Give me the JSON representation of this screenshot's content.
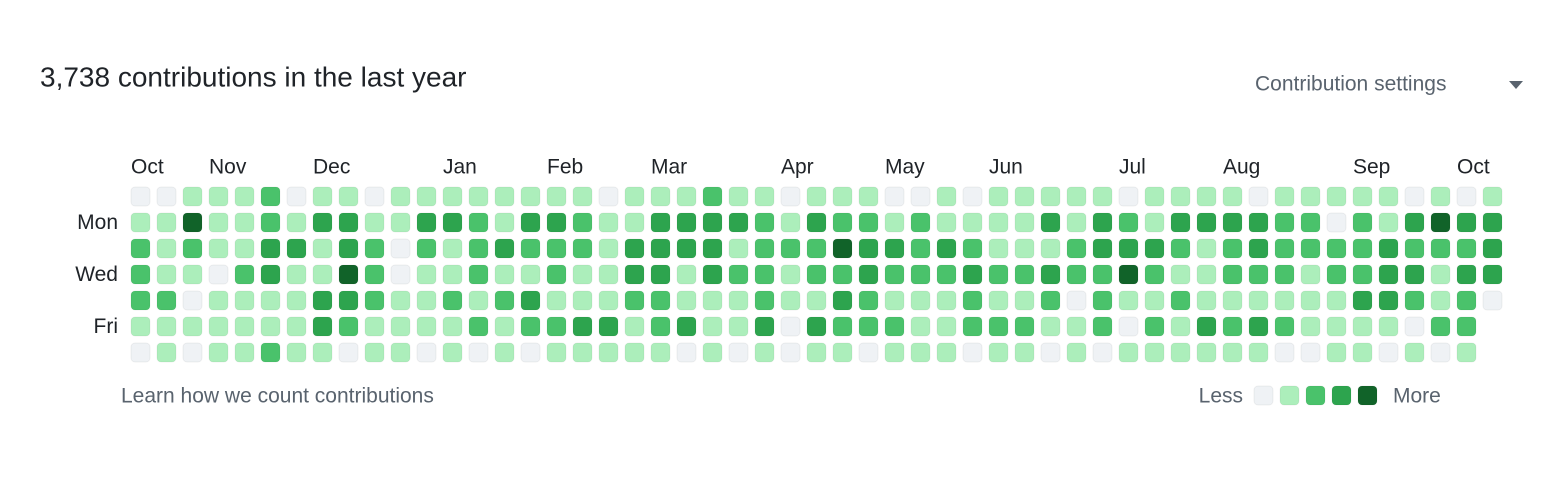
{
  "header": {
    "title": "3,738 contributions in the last year",
    "settings": "Contribution settings"
  },
  "graph": {
    "month_labels": [
      "Oct",
      null,
      null,
      "Nov",
      null,
      null,
      null,
      "Dec",
      null,
      null,
      null,
      null,
      "Jan",
      null,
      null,
      null,
      "Feb",
      null,
      null,
      null,
      "Mar",
      null,
      null,
      null,
      null,
      "Apr",
      null,
      null,
      null,
      "May",
      null,
      null,
      null,
      "Jun",
      null,
      null,
      null,
      null,
      "Jul",
      null,
      null,
      null,
      "Aug",
      null,
      null,
      null,
      null,
      "Sep",
      null,
      null,
      null,
      "Oct",
      null
    ],
    "day_labels": [
      null,
      "Mon",
      null,
      "Wed",
      null,
      "Fri",
      null
    ],
    "level_colors": [
      "#eff2f5",
      "#aceebb",
      "#4ac26b",
      "#2da44e",
      "#116329"
    ],
    "rows": [
      [
        0,
        0,
        1,
        1,
        1,
        2,
        0,
        1,
        1,
        0,
        1,
        1,
        1,
        1,
        1,
        1,
        1,
        1,
        0,
        1,
        1,
        1,
        2,
        1,
        1,
        0,
        1,
        1,
        1,
        0,
        0,
        1,
        0,
        1,
        1,
        1,
        1,
        1,
        0,
        1,
        1,
        1,
        1,
        0,
        1,
        1,
        1,
        1,
        1,
        0,
        1,
        0,
        1
      ],
      [
        1,
        1,
        4,
        1,
        1,
        2,
        1,
        3,
        3,
        1,
        1,
        3,
        3,
        2,
        1,
        3,
        3,
        2,
        1,
        1,
        3,
        3,
        3,
        3,
        2,
        1,
        3,
        2,
        2,
        1,
        2,
        1,
        1,
        1,
        1,
        3,
        1,
        3,
        2,
        1,
        3,
        3,
        3,
        3,
        2,
        2,
        0,
        2,
        1,
        3,
        4,
        3,
        3
      ],
      [
        2,
        1,
        2,
        1,
        1,
        3,
        3,
        1,
        3,
        2,
        0,
        2,
        1,
        2,
        3,
        2,
        2,
        2,
        1,
        3,
        3,
        3,
        3,
        1,
        2,
        2,
        2,
        4,
        3,
        3,
        2,
        3,
        2,
        1,
        1,
        1,
        2,
        3,
        3,
        3,
        2,
        1,
        2,
        3,
        2,
        2,
        2,
        2,
        3,
        2,
        2,
        2,
        3
      ],
      [
        2,
        1,
        1,
        0,
        2,
        3,
        1,
        1,
        4,
        2,
        0,
        1,
        1,
        2,
        1,
        1,
        2,
        1,
        1,
        3,
        3,
        1,
        3,
        2,
        2,
        1,
        2,
        2,
        3,
        2,
        2,
        2,
        3,
        2,
        2,
        3,
        2,
        2,
        4,
        2,
        1,
        1,
        2,
        2,
        2,
        1,
        2,
        2,
        3,
        3,
        1,
        3,
        3
      ],
      [
        2,
        2,
        0,
        1,
        1,
        1,
        1,
        3,
        3,
        2,
        1,
        1,
        2,
        1,
        2,
        3,
        1,
        1,
        1,
        2,
        2,
        1,
        1,
        1,
        2,
        1,
        1,
        3,
        2,
        1,
        1,
        1,
        2,
        1,
        1,
        2,
        0,
        2,
        1,
        1,
        2,
        1,
        1,
        1,
        1,
        1,
        1,
        3,
        3,
        2,
        1,
        2,
        0
      ],
      [
        1,
        1,
        1,
        1,
        1,
        1,
        1,
        3,
        2,
        1,
        1,
        1,
        1,
        2,
        1,
        2,
        2,
        3,
        3,
        1,
        2,
        3,
        1,
        1,
        3,
        0,
        3,
        2,
        2,
        2,
        1,
        1,
        2,
        2,
        2,
        1,
        1,
        2,
        0,
        2,
        1,
        3,
        2,
        3,
        2,
        1,
        1,
        1,
        1,
        0,
        2,
        2,
        null
      ],
      [
        0,
        1,
        0,
        1,
        1,
        2,
        1,
        1,
        0,
        1,
        1,
        0,
        1,
        0,
        1,
        0,
        1,
        1,
        1,
        1,
        1,
        0,
        1,
        0,
        1,
        0,
        1,
        1,
        0,
        1,
        1,
        1,
        0,
        1,
        1,
        0,
        1,
        0,
        1,
        1,
        1,
        1,
        1,
        1,
        0,
        0,
        1,
        1,
        0,
        1,
        0,
        1,
        null
      ]
    ]
  },
  "footer": {
    "learn": "Learn how we count contributions",
    "less": "Less",
    "more": "More",
    "legend_levels": [
      0,
      1,
      2,
      3,
      4
    ]
  }
}
